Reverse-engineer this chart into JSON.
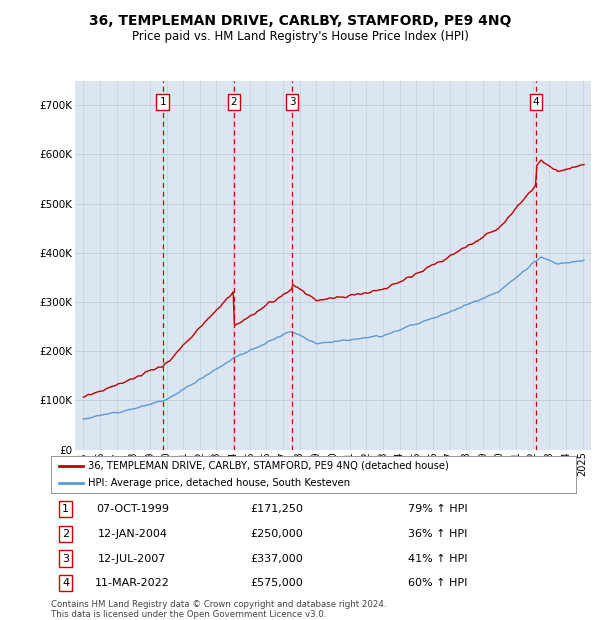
{
  "title": "36, TEMPLEMAN DRIVE, CARLBY, STAMFORD, PE9 4NQ",
  "subtitle": "Price paid vs. HM Land Registry's House Price Index (HPI)",
  "purchases": [
    {
      "date": 1999.77,
      "price": 171250,
      "label": "1"
    },
    {
      "date": 2004.04,
      "price": 250000,
      "label": "2"
    },
    {
      "date": 2007.54,
      "price": 337000,
      "label": "3"
    },
    {
      "date": 2022.19,
      "price": 575000,
      "label": "4"
    }
  ],
  "purchase_annotations": [
    {
      "num": "1",
      "date_str": "07-OCT-1999",
      "price_str": "£171,250",
      "pct": "79% ↑ HPI"
    },
    {
      "num": "2",
      "date_str": "12-JAN-2004",
      "price_str": "£250,000",
      "pct": "36% ↑ HPI"
    },
    {
      "num": "3",
      "date_str": "12-JUL-2007",
      "price_str": "£337,000",
      "pct": "41% ↑ HPI"
    },
    {
      "num": "4",
      "date_str": "11-MAR-2022",
      "price_str": "£575,000",
      "pct": "60% ↑ HPI"
    }
  ],
  "hpi_color": "#5b9bd5",
  "price_color": "#c00000",
  "vline_color": "#cc0000",
  "grid_color": "#c0cfe0",
  "plot_bg": "#dce6f1",
  "ylim": [
    0,
    750000
  ],
  "yticks": [
    0,
    100000,
    200000,
    300000,
    400000,
    500000,
    600000,
    700000
  ],
  "ytick_labels": [
    "£0",
    "£100K",
    "£200K",
    "£300K",
    "£400K",
    "£500K",
    "£600K",
    "£700K"
  ],
  "xlim_start": 1994.5,
  "xlim_end": 2025.5,
  "footer": "Contains HM Land Registry data © Crown copyright and database right 2024.\nThis data is licensed under the Open Government Licence v3.0.",
  "legend_label_red": "36, TEMPLEMAN DRIVE, CARLBY, STAMFORD, PE9 4NQ (detached house)",
  "legend_label_blue": "HPI: Average price, detached house, South Kesteven"
}
